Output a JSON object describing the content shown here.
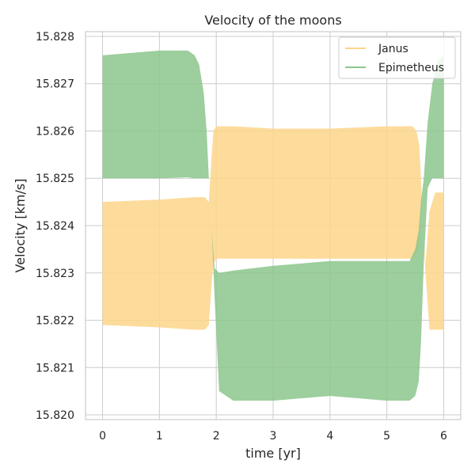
{
  "chart_data": {
    "type": "area",
    "title": "Velocity of the moons",
    "xlabel": "time [yr]",
    "ylabel": "Velocity [km/s]",
    "xlim": [
      -0.3,
      6.3
    ],
    "ylim": [
      15.8199,
      15.8281
    ],
    "x_ticks": [
      0,
      1,
      2,
      3,
      4,
      5,
      6
    ],
    "x_tick_labels": [
      "0",
      "1",
      "2",
      "3",
      "4",
      "5",
      "6"
    ],
    "y_ticks": [
      15.82,
      15.821,
      15.822,
      15.823,
      15.824,
      15.825,
      15.826,
      15.827,
      15.828
    ],
    "y_tick_labels": [
      "15.820",
      "15.821",
      "15.822",
      "15.823",
      "15.824",
      "15.825",
      "15.826",
      "15.827",
      "15.828"
    ],
    "grid": true,
    "legend": {
      "position": "top-right"
    },
    "series": [
      {
        "name": "Janus",
        "color": "#fdd58a",
        "x": [
          0,
          1.0,
          1.6,
          1.8,
          1.87,
          1.92,
          1.95,
          2.0,
          2.3,
          3.0,
          4.0,
          5.0,
          5.3,
          5.45,
          5.52,
          5.57,
          5.62,
          5.68,
          5.75,
          5.85,
          6.0
        ],
        "upper": [
          15.8245,
          15.82455,
          15.8246,
          15.8246,
          15.8245,
          15.8255,
          15.826,
          15.8261,
          15.8261,
          15.82605,
          15.82605,
          15.8261,
          15.8261,
          15.8261,
          15.826,
          15.8257,
          15.8245,
          15.8232,
          15.8243,
          15.8247,
          15.8247
        ],
        "lower": [
          15.8219,
          15.82185,
          15.8218,
          15.8218,
          15.8219,
          15.8228,
          15.8232,
          15.8233,
          15.8233,
          15.8233,
          15.8233,
          15.8233,
          15.8233,
          15.8233,
          15.8234,
          15.8236,
          15.8245,
          15.823,
          15.8218,
          15.8218,
          15.8218
        ]
      },
      {
        "name": "Epimetheus",
        "color": "#8cc68c",
        "x": [
          0,
          1.0,
          1.5,
          1.62,
          1.7,
          1.78,
          1.83,
          1.87,
          1.92,
          1.97,
          2.05,
          2.3,
          3.0,
          4.0,
          5.0,
          5.4,
          5.5,
          5.56,
          5.6,
          5.65,
          5.72,
          5.8,
          5.9,
          6.0
        ],
        "upper": [
          15.8276,
          15.8277,
          15.8277,
          15.8276,
          15.8274,
          15.8268,
          15.826,
          15.825,
          15.8239,
          15.8231,
          15.823,
          15.82305,
          15.82315,
          15.82325,
          15.82325,
          15.82325,
          15.8235,
          15.8239,
          15.8245,
          15.825,
          15.8262,
          15.827,
          15.8275,
          15.8276
        ],
        "lower": [
          15.825,
          15.825,
          15.82502,
          15.825,
          15.825,
          15.825,
          15.825,
          15.825,
          15.8239,
          15.8225,
          15.8205,
          15.8203,
          15.8203,
          15.8204,
          15.8203,
          15.8203,
          15.8204,
          15.8207,
          15.8215,
          15.8232,
          15.8248,
          15.825,
          15.825,
          15.825
        ]
      }
    ]
  }
}
